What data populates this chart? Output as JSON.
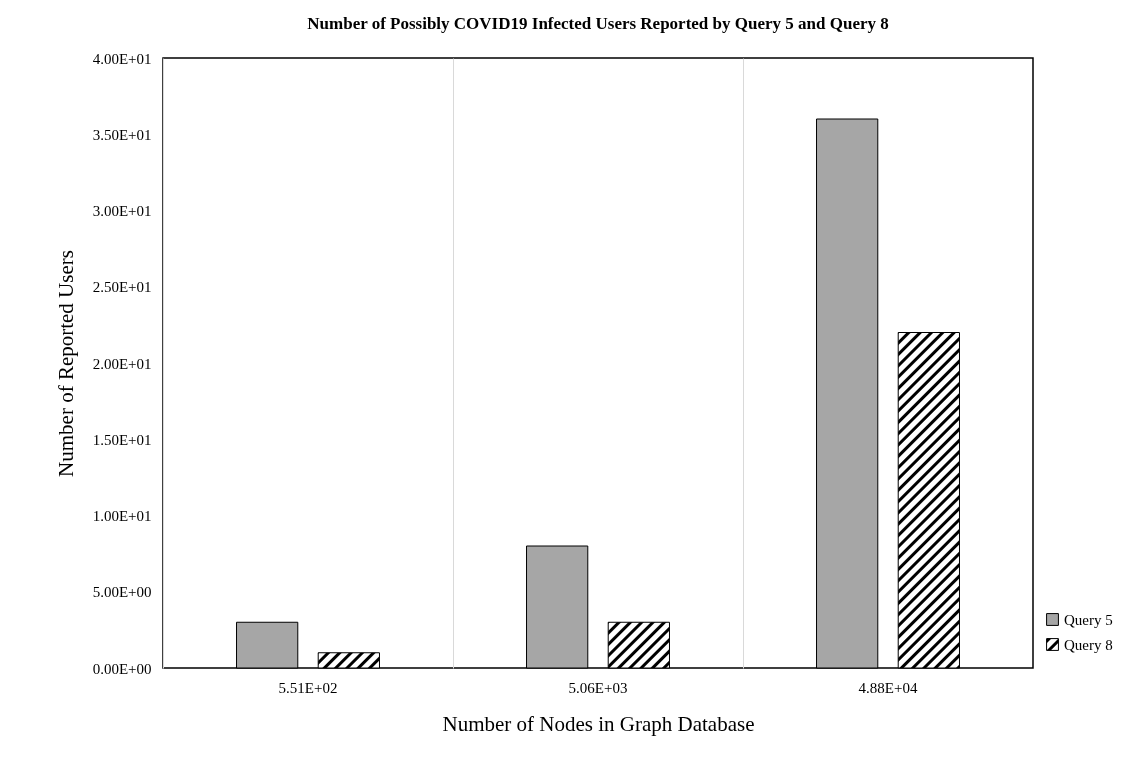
{
  "chart_data": {
    "type": "bar",
    "title": "Number of Possibly COVID19 Infected Users Reported by Query 5 and Query 8",
    "xlabel": "Number of Nodes in Graph Database",
    "ylabel": "Number of Reported Users",
    "categories": [
      "5.51E+02",
      "5.06E+03",
      "4.88E+04"
    ],
    "series": [
      {
        "name": "Query 5",
        "color": "#a6a6a6",
        "values": [
          3,
          8,
          36
        ]
      },
      {
        "name": "Query 8",
        "color": "#000000",
        "values": [
          1,
          3,
          22
        ]
      }
    ],
    "ylim": [
      0,
      40
    ],
    "yticks": [
      {
        "value": 0,
        "label": "0.00E+00"
      },
      {
        "value": 5,
        "label": "5.00E+00"
      },
      {
        "value": 10,
        "label": "1.00E+01"
      },
      {
        "value": 15,
        "label": "1.50E+01"
      },
      {
        "value": 20,
        "label": "2.00E+01"
      },
      {
        "value": 25,
        "label": "2.50E+01"
      },
      {
        "value": 30,
        "label": "3.00E+01"
      },
      {
        "value": 35,
        "label": "3.50E+01"
      },
      {
        "value": 40,
        "label": "4.00E+01"
      }
    ],
    "grid": "x",
    "legend": "right"
  }
}
